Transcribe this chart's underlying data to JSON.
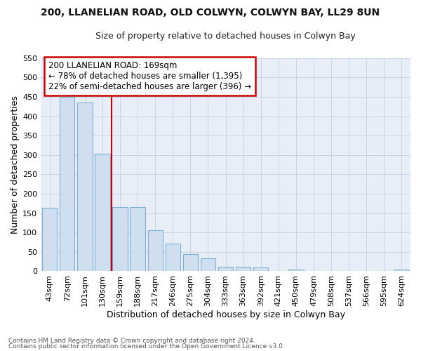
{
  "title1": "200, LLANELIAN ROAD, OLD COLWYN, COLWYN BAY, LL29 8UN",
  "title2": "Size of property relative to detached houses in Colwyn Bay",
  "xlabel": "Distribution of detached houses by size in Colwyn Bay",
  "ylabel": "Number of detached properties",
  "categories": [
    "43sqm",
    "72sqm",
    "101sqm",
    "130sqm",
    "159sqm",
    "188sqm",
    "217sqm",
    "246sqm",
    "275sqm",
    "304sqm",
    "333sqm",
    "363sqm",
    "392sqm",
    "421sqm",
    "450sqm",
    "479sqm",
    "508sqm",
    "537sqm",
    "566sqm",
    "595sqm",
    "624sqm"
  ],
  "values": [
    163,
    450,
    435,
    303,
    165,
    165,
    105,
    72,
    44,
    33,
    11,
    11,
    9,
    0,
    4,
    0,
    0,
    0,
    0,
    0,
    5
  ],
  "bar_color": "#cfdff0",
  "bar_edge_color": "#7bafd4",
  "vline_x": 3.5,
  "vline_color": "#cc0000",
  "annotation_text": "200 LLANELIAN ROAD: 169sqm\n← 78% of detached houses are smaller (1,395)\n22% of semi-detached houses are larger (396) →",
  "annotation_box_color": "#ffffff",
  "annotation_box_edge_color": "#cc0000",
  "ylim": [
    0,
    550
  ],
  "yticks": [
    0,
    50,
    100,
    150,
    200,
    250,
    300,
    350,
    400,
    450,
    500,
    550
  ],
  "footer1": "Contains HM Land Registry data © Crown copyright and database right 2024.",
  "footer2": "Contains public sector information licensed under the Open Government Licence v3.0.",
  "fig_bg_color": "#ffffff",
  "plot_bg_color": "#e8eef8",
  "grid_color": "#c8d4e8",
  "title1_fontsize": 10,
  "title2_fontsize": 9,
  "ylabel_fontsize": 9,
  "xlabel_fontsize": 9,
  "tick_fontsize": 8,
  "ann_fontsize": 8.5,
  "footer_fontsize": 6.5
}
